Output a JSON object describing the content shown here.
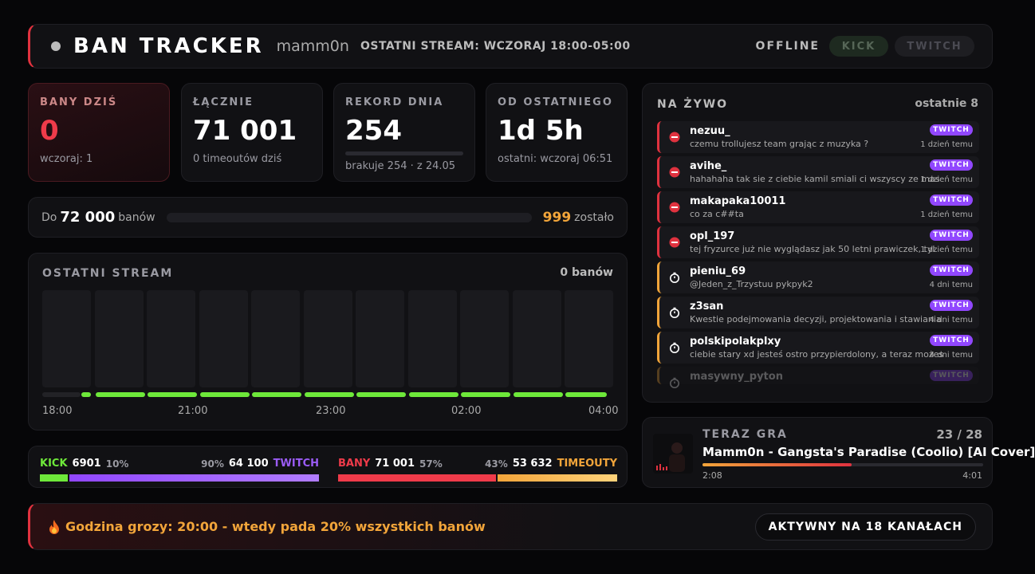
{
  "header": {
    "title": "BAN TRACKER",
    "channel": "mamm0n",
    "last_stream": "OSTATNI STREAM: WCZORAJ 18:00-05:00",
    "status": "OFFLINE",
    "platforms": [
      "KICK",
      "TWITCH"
    ]
  },
  "stats": [
    {
      "label": "BANY DZIŚ",
      "value": "0",
      "sub": "wczoraj: 1"
    },
    {
      "label": "ŁĄCZNIE",
      "value": "71 001",
      "sub": "0 timeoutów dziś"
    },
    {
      "label": "REKORD DNIA",
      "value": "254",
      "sub": "brakuje 254 · z 24.05"
    },
    {
      "label": "OD OSTATNIEGO",
      "value": "1d 5h",
      "sub": "ostatni: wczoraj 06:51"
    }
  ],
  "goal": {
    "prefix": "Do",
    "target": "72 000",
    "unit": "banów",
    "remaining": "999",
    "remaining_label": "zostało"
  },
  "stream": {
    "title": "OSTATNI STREAM",
    "total": "0 banów",
    "time_labels": [
      "18:00",
      "21:00",
      "23:00",
      "02:00",
      "04:00"
    ]
  },
  "splits": [
    {
      "left": {
        "label": "KICK",
        "value": "6901",
        "pct": "10%"
      },
      "right": {
        "label": "TWITCH",
        "value": "64 100",
        "pct": "90%"
      }
    },
    {
      "left": {
        "label": "BANY",
        "value": "71 001",
        "pct": "57%"
      },
      "right": {
        "label": "TIMEOUTY",
        "value": "53 632",
        "pct": "43%"
      }
    }
  ],
  "live": {
    "title": "NA ŻYWO",
    "count": "ostatnie 8",
    "items": [
      {
        "type": "ban",
        "user": "nezuu_",
        "message": "czemu trollujesz team grając z muzyka ?",
        "platform": "TWITCH",
        "time": "1 dzień temu"
      },
      {
        "type": "ban",
        "user": "avihe_",
        "message": "hahahaha tak sie z ciebie kamil smiali ci wszyscy ze mas",
        "platform": "TWITCH",
        "time": "1 dzień temu"
      },
      {
        "type": "ban",
        "user": "makapaka10011",
        "message": "co za c##ta",
        "platform": "TWITCH",
        "time": "1 dzień temu"
      },
      {
        "type": "ban",
        "user": "opl_197",
        "message": "tej fryzurce już nie wyglądasz jak 50 letni prawiczek, tyl",
        "platform": "TWITCH",
        "time": "1 dzień temu"
      },
      {
        "type": "timeout",
        "user": "pieniu_69",
        "message": "@Jeden_z_Trzystuu pykpyk2",
        "platform": "TWITCH",
        "time": "4 dni temu"
      },
      {
        "type": "timeout",
        "user": "z3san",
        "message": "Kwestie podejmowania decyzji, projektowania i stawiania",
        "platform": "TWITCH",
        "time": "4 dni temu"
      },
      {
        "type": "timeout",
        "user": "polskipolakplxy",
        "message": "ciebie stary xd jesteś ostro przypierdolony, a teraz możes",
        "platform": "TWITCH",
        "time": "4 dni temu"
      },
      {
        "type": "timeout",
        "user": "masywny_pyton",
        "platform": "TWITCH"
      }
    ]
  },
  "now_playing": {
    "label": "TERAZ GRA",
    "position": "23 / 28",
    "title": "Mamm0n - Gangsta's Paradise (Coolio) [AI Cover]",
    "elapsed": "2:08",
    "duration": "4:01"
  },
  "footer": {
    "message": "Godzina grozy: 20:00 - wtedy pada 20% wszystkich banów",
    "badge": "AKTYWNY NA 18 KANAŁACH"
  }
}
